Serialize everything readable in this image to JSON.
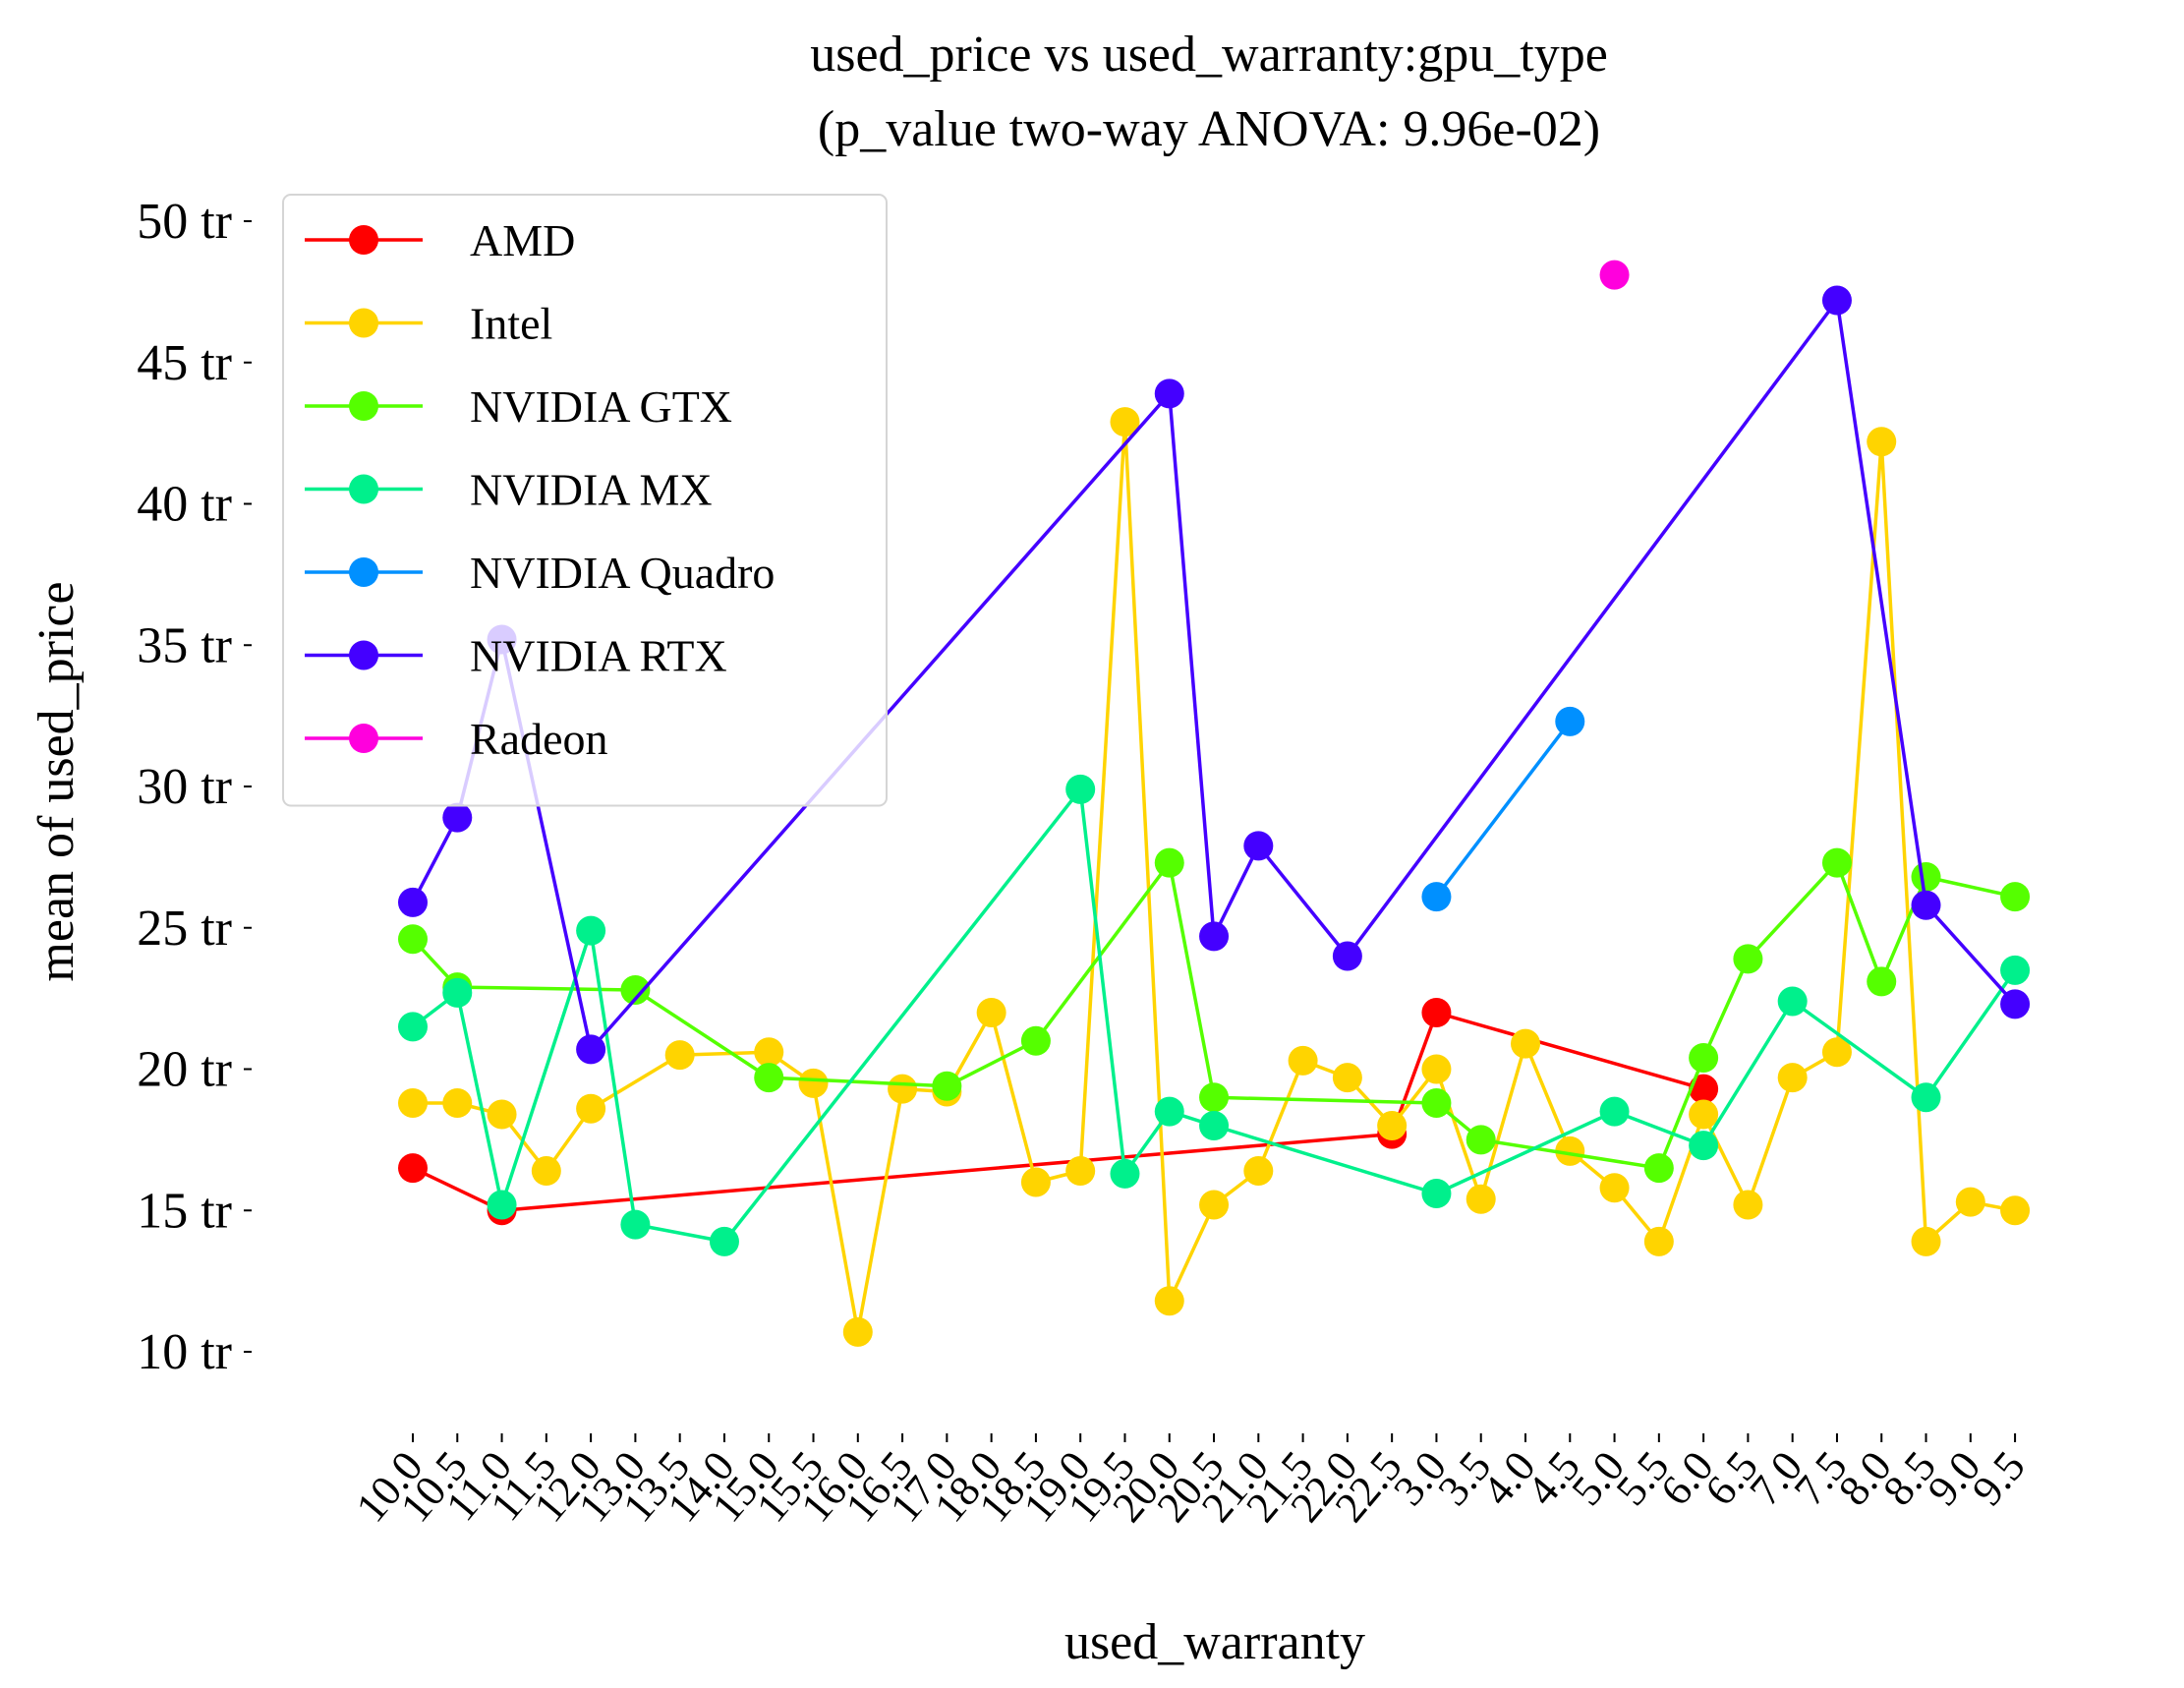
{
  "chart_data": {
    "type": "line",
    "title": "used_price vs used_warranty:gpu_type",
    "subtitle": "(p_value two-way ANOVA: 9.96e-02)",
    "xlabel": "used_warranty",
    "ylabel": "mean of used_price",
    "x_categories": [
      "10.0",
      "10.5",
      "11.0",
      "11.5",
      "12.0",
      "13.0",
      "13.5",
      "14.0",
      "15.0",
      "15.5",
      "16.0",
      "16.5",
      "17.0",
      "18.0",
      "18.5",
      "19.0",
      "19.5",
      "20.0",
      "20.5",
      "21.0",
      "21.5",
      "22.0",
      "22.5",
      "3.0",
      "3.5",
      "4.0",
      "4.5",
      "5.0",
      "5.5",
      "6.0",
      "6.5",
      "7.0",
      "7.5",
      "8.0",
      "8.5",
      "9.0",
      "9.5"
    ],
    "ylim": [
      8.5,
      51.5
    ],
    "y_ticks": [
      {
        "value": 10,
        "label": "10 tr"
      },
      {
        "value": 15,
        "label": "15 tr"
      },
      {
        "value": 20,
        "label": "20 tr"
      },
      {
        "value": 25,
        "label": "25 tr"
      },
      {
        "value": 30,
        "label": "30 tr"
      },
      {
        "value": 35,
        "label": "35 tr"
      },
      {
        "value": 40,
        "label": "40 tr"
      },
      {
        "value": 45,
        "label": "45 tr"
      },
      {
        "value": 50,
        "label": "50 tr"
      }
    ],
    "legend_position": "upper-left",
    "grid": false,
    "series": [
      {
        "name": "AMD",
        "color": "#ff0000",
        "points": [
          [
            0,
            16.5
          ],
          [
            2,
            15.0
          ],
          [
            22,
            17.7
          ],
          [
            23,
            22.0
          ],
          [
            29,
            19.3
          ]
        ]
      },
      {
        "name": "Intel",
        "color": "#ffd400",
        "points": [
          [
            0,
            18.8
          ],
          [
            1,
            18.8
          ],
          [
            2,
            18.4
          ],
          [
            3,
            16.4
          ],
          [
            4,
            18.6
          ],
          [
            6,
            20.5
          ],
          [
            8,
            20.6
          ],
          [
            9,
            19.5
          ],
          [
            10,
            10.7
          ],
          [
            11,
            19.3
          ],
          [
            12,
            19.2
          ],
          [
            13,
            22.0
          ],
          [
            14,
            16.0
          ],
          [
            15,
            16.4
          ],
          [
            16,
            42.9
          ],
          [
            17,
            11.8
          ],
          [
            18,
            15.2
          ],
          [
            19,
            16.4
          ],
          [
            20,
            20.3
          ],
          [
            21,
            19.7
          ],
          [
            22,
            18.0
          ],
          [
            23,
            20.0
          ],
          [
            24,
            15.4
          ],
          [
            25,
            20.9
          ],
          [
            26,
            17.1
          ],
          [
            27,
            15.8
          ],
          [
            28,
            13.9
          ],
          [
            29,
            18.4
          ],
          [
            30,
            15.2
          ],
          [
            31,
            19.7
          ],
          [
            32,
            20.6
          ],
          [
            33,
            42.2
          ],
          [
            34,
            13.9
          ],
          [
            35,
            15.3
          ],
          [
            36,
            15.0
          ]
        ]
      },
      {
        "name": "NVIDIA GTX",
        "color": "#55ff00",
        "points": [
          [
            0,
            24.6
          ],
          [
            1,
            22.9
          ],
          [
            5,
            22.8
          ],
          [
            8,
            19.7
          ],
          [
            12,
            19.4
          ],
          [
            14,
            21.0
          ],
          [
            17,
            27.3
          ],
          [
            18,
            19.0
          ],
          [
            23,
            18.8
          ],
          [
            24,
            17.5
          ],
          [
            28,
            16.5
          ],
          [
            29,
            20.4
          ],
          [
            30,
            23.9
          ],
          [
            32,
            27.3
          ],
          [
            33,
            23.1
          ],
          [
            34,
            26.8
          ],
          [
            36,
            26.1
          ]
        ]
      },
      {
        "name": "NVIDIA MX",
        "color": "#00f08c",
        "points": [
          [
            0,
            21.5
          ],
          [
            1,
            22.7
          ],
          [
            2,
            15.2
          ],
          [
            4,
            24.9
          ],
          [
            5,
            14.5
          ],
          [
            7,
            13.9
          ],
          [
            15,
            29.9
          ],
          [
            16,
            16.3
          ],
          [
            17,
            18.5
          ],
          [
            18,
            18.0
          ],
          [
            23,
            15.6
          ],
          [
            27,
            18.5
          ],
          [
            29,
            17.3
          ],
          [
            31,
            22.4
          ],
          [
            34,
            19.0
          ],
          [
            36,
            23.5
          ]
        ]
      },
      {
        "name": "NVIDIA Quadro",
        "color": "#0090ff",
        "points": [
          [
            23,
            26.1
          ],
          [
            26,
            32.3
          ]
        ]
      },
      {
        "name": "NVIDIA RTX",
        "color": "#4400ff",
        "points": [
          [
            0,
            25.9
          ],
          [
            1,
            28.9
          ],
          [
            2,
            35.2
          ],
          [
            4,
            20.7
          ],
          [
            17,
            43.9
          ],
          [
            18,
            24.7
          ],
          [
            19,
            27.9
          ],
          [
            21,
            24.0
          ],
          [
            32,
            47.2
          ],
          [
            34,
            25.8
          ],
          [
            36,
            22.3
          ]
        ]
      },
      {
        "name": "Radeon",
        "color": "#ff00dd",
        "points": [
          [
            27,
            48.1
          ]
        ]
      }
    ]
  }
}
